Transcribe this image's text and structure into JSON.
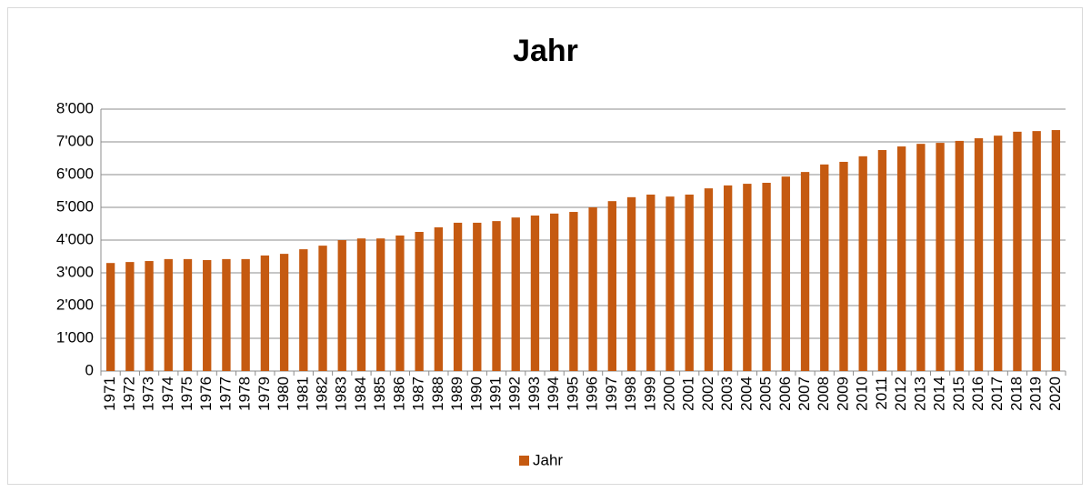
{
  "chart_data": {
    "type": "bar",
    "title": "Jahr",
    "categories": [
      "1971",
      "1972",
      "1973",
      "1974",
      "1975",
      "1976",
      "1977",
      "1978",
      "1979",
      "1980",
      "1981",
      "1982",
      "1983",
      "1984",
      "1985",
      "1986",
      "1987",
      "1988",
      "1989",
      "1990",
      "1991",
      "1992",
      "1993",
      "1994",
      "1995",
      "1996",
      "1997",
      "1998",
      "1999",
      "2000",
      "2001",
      "2002",
      "2003",
      "2004",
      "2005",
      "2006",
      "2007",
      "2008",
      "2009",
      "2010",
      "2011",
      "2012",
      "2013",
      "2014",
      "2015",
      "2016",
      "2017",
      "2018",
      "2019",
      "2020"
    ],
    "series": [
      {
        "name": "Jahr",
        "color": "#c55a11",
        "values": [
          3300,
          3330,
          3360,
          3420,
          3420,
          3390,
          3420,
          3420,
          3530,
          3580,
          3720,
          3830,
          4000,
          4050,
          4050,
          4140,
          4250,
          4390,
          4530,
          4530,
          4580,
          4690,
          4750,
          4810,
          4860,
          5000,
          5190,
          5310,
          5390,
          5330,
          5390,
          5580,
          5670,
          5720,
          5750,
          5940,
          6080,
          6310,
          6390,
          6560,
          6750,
          6860,
          6940,
          6970,
          7030,
          7110,
          7190,
          7310,
          7330,
          7360
        ]
      }
    ],
    "ylim": [
      0,
      8000
    ],
    "yticks": [
      0,
      {
        "value": 1000,
        "label": "1'000"
      },
      {
        "value": 2000,
        "label": "2'000"
      },
      {
        "value": 3000,
        "label": "3'000"
      },
      {
        "value": 4000,
        "label": "4'000"
      },
      {
        "value": 5000,
        "label": "5'000"
      },
      {
        "value": 6000,
        "label": "6'000"
      },
      {
        "value": 7000,
        "label": "7'000"
      },
      {
        "value": 8000,
        "label": "8'000"
      }
    ],
    "grid": true,
    "legend": "bottom"
  }
}
